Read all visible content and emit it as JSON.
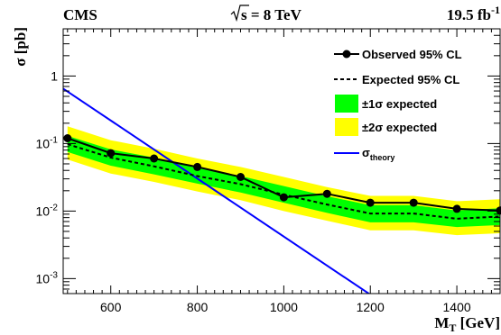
{
  "chart_data": {
    "type": "line",
    "experiment": "CMS",
    "energy_label": "s = 8 TeV",
    "luminosity_label": "19.5 fb",
    "luminosity_exp": "-1",
    "xlabel": "M",
    "xlabel_sub": "T",
    "xlabel_unit": " [GeV]",
    "ylabel": "σ [pb]",
    "xlim": [
      490,
      1500
    ],
    "ylim": [
      0.0006,
      5
    ],
    "yscale": "log",
    "x_ticks": [
      "600",
      "800",
      "1000",
      "1200",
      "1400"
    ],
    "y_ticks": [
      {
        "base": "10",
        "exp": "-3"
      },
      {
        "base": "10",
        "exp": "-2"
      },
      {
        "base": "10",
        "exp": "-1"
      },
      {
        "base": "1",
        "exp": ""
      }
    ],
    "x": [
      500,
      600,
      700,
      800,
      900,
      1000,
      1100,
      1200,
      1300,
      1400,
      1500
    ],
    "series": [
      {
        "name": "Observed 95% CL",
        "values": [
          0.12,
          0.072,
          0.06,
          0.045,
          0.032,
          0.016,
          0.018,
          0.0133,
          0.0133,
          0.0108,
          0.0102
        ],
        "color": "#000000",
        "style": "solid-markers"
      },
      {
        "name": "Expected 95% CL",
        "values": [
          0.098,
          0.062,
          0.046,
          0.033,
          0.025,
          0.0175,
          0.0125,
          0.0092,
          0.0092,
          0.0077,
          0.0083
        ],
        "color": "#000000",
        "style": "dashed"
      },
      {
        "name": "±1σ expected",
        "lower": [
          0.075,
          0.047,
          0.035,
          0.0255,
          0.0188,
          0.0133,
          0.0094,
          0.0068,
          0.0068,
          0.0058,
          0.0062
        ],
        "upper": [
          0.13,
          0.082,
          0.062,
          0.044,
          0.033,
          0.0235,
          0.0166,
          0.0122,
          0.0122,
          0.0102,
          0.011
        ],
        "color": "#00ff00"
      },
      {
        "name": "±2σ expected",
        "lower": [
          0.058,
          0.036,
          0.027,
          0.0195,
          0.0145,
          0.01,
          0.0072,
          0.0052,
          0.0052,
          0.0044,
          0.0047
        ],
        "upper": [
          0.18,
          0.112,
          0.084,
          0.06,
          0.045,
          0.032,
          0.0226,
          0.0168,
          0.0168,
          0.014,
          0.015
        ],
        "color": "#ffff00"
      },
      {
        "name": "σ",
        "name_sub": "theory",
        "x": [
          490,
          1200
        ],
        "values": [
          0.65,
          0.00058
        ],
        "color": "#0000ff",
        "style": "solid"
      }
    ],
    "legend_position": "top-right"
  }
}
